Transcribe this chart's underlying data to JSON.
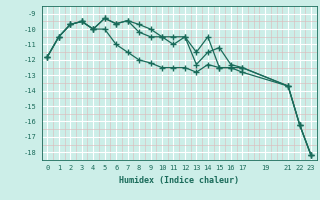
{
  "xlabel": "Humidex (Indice chaleur)",
  "bg_color": "#cceee8",
  "grid_color_major": "#ffffff",
  "grid_color_minor": "#ddb8b8",
  "line_color": "#1a6b5a",
  "xlim": [
    -0.5,
    23.5
  ],
  "ylim": [
    -18.5,
    -8.5
  ],
  "xticks": [
    0,
    1,
    2,
    3,
    4,
    5,
    6,
    7,
    8,
    9,
    10,
    11,
    12,
    13,
    14,
    15,
    16,
    17,
    19,
    21,
    22,
    23
  ],
  "yticks": [
    -9,
    -10,
    -11,
    -12,
    -13,
    -14,
    -15,
    -16,
    -17,
    -18
  ],
  "s1_x": [
    0,
    1,
    2,
    3,
    4,
    5,
    6,
    7,
    8,
    9,
    10,
    11,
    12,
    13,
    14,
    15,
    16,
    17,
    21,
    22,
    23
  ],
  "s1_y": [
    -11.8,
    -10.5,
    -9.7,
    -9.5,
    -10.0,
    -9.3,
    -9.65,
    -9.45,
    -9.7,
    -10.0,
    -10.5,
    -10.5,
    -10.5,
    -12.3,
    -11.5,
    -11.2,
    -12.3,
    -12.5,
    -13.7,
    -16.2,
    -18.2
  ],
  "s2_x": [
    0,
    1,
    2,
    3,
    4,
    5,
    6,
    7,
    8,
    9,
    10,
    11,
    12,
    13,
    14,
    15,
    16,
    17,
    21,
    22,
    23
  ],
  "s2_y": [
    -11.8,
    -10.5,
    -9.7,
    -9.5,
    -10.0,
    -9.3,
    -9.65,
    -9.45,
    -10.2,
    -10.5,
    -10.5,
    -11.0,
    -10.5,
    -11.5,
    -10.5,
    -12.5,
    -12.5,
    -12.5,
    -13.7,
    -16.2,
    -18.2
  ],
  "s3_x": [
    0,
    1,
    2,
    3,
    4,
    5,
    6,
    7,
    8,
    9,
    10,
    11,
    12,
    13,
    14,
    15,
    16,
    17,
    21,
    22,
    23
  ],
  "s3_y": [
    -11.8,
    -10.5,
    -9.7,
    -9.5,
    -10.0,
    -10.0,
    -11.0,
    -11.5,
    -12.0,
    -12.2,
    -12.5,
    -12.5,
    -12.5,
    -12.8,
    -12.3,
    -12.5,
    -12.5,
    -12.8,
    -13.7,
    -16.2,
    -18.2
  ]
}
